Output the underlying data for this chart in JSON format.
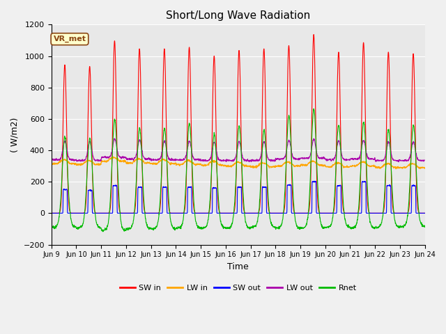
{
  "title": "Short/Long Wave Radiation",
  "ylabel": "( W/m2)",
  "xlabel": "Time",
  "annotation": "VR_met",
  "ylim": [
    -200,
    1200
  ],
  "yticks": [
    -200,
    0,
    200,
    400,
    600,
    800,
    1000,
    1200
  ],
  "xtick_labels": [
    "Jun 9",
    "Jun 10",
    "Jun 11",
    "Jun 12",
    "Jun 13",
    "Jun 14",
    "Jun 15",
    "Jun 16",
    "Jun 17",
    "Jun 18",
    "Jun 19",
    "Jun 20",
    "Jun 21",
    "Jun 22",
    "Jun 23",
    "Jun 24"
  ],
  "num_days": 15,
  "samples_per_day": 144,
  "background_color": "#f0f0f0",
  "plot_bg_color": "#e8e8e8",
  "grid_color": "#ffffff",
  "legend_entries": [
    "SW in",
    "LW in",
    "SW out",
    "LW out",
    "Rnet"
  ],
  "line_colors": [
    "#ff0000",
    "#ffa500",
    "#0000ff",
    "#aa00aa",
    "#00bb00"
  ],
  "title_fontsize": 11,
  "label_fontsize": 9,
  "tick_fontsize": 8,
  "peaks_sw_in": [
    930,
    920,
    1080,
    1030,
    1030,
    1040,
    985,
    1020,
    1030,
    1050,
    1120,
    1010,
    1070,
    1010,
    1000
  ],
  "peaks_sw_out": [
    150,
    145,
    175,
    165,
    165,
    165,
    160,
    165,
    165,
    180,
    200,
    175,
    200,
    175,
    175
  ],
  "peaks_lw_out": [
    460,
    455,
    475,
    465,
    460,
    460,
    455,
    455,
    455,
    465,
    470,
    460,
    465,
    455,
    455
  ],
  "peaks_rnet": [
    490,
    480,
    600,
    540,
    540,
    570,
    500,
    555,
    530,
    620,
    660,
    560,
    580,
    535,
    560
  ],
  "night_rnet": [
    -90,
    -95,
    -110,
    -100,
    -100,
    -95,
    -95,
    -95,
    -90,
    -95,
    -95,
    -90,
    -95,
    -90,
    -85
  ],
  "lw_in_base": [
    315,
    310,
    330,
    320,
    315,
    310,
    305,
    300,
    295,
    300,
    305,
    295,
    300,
    290,
    290
  ]
}
